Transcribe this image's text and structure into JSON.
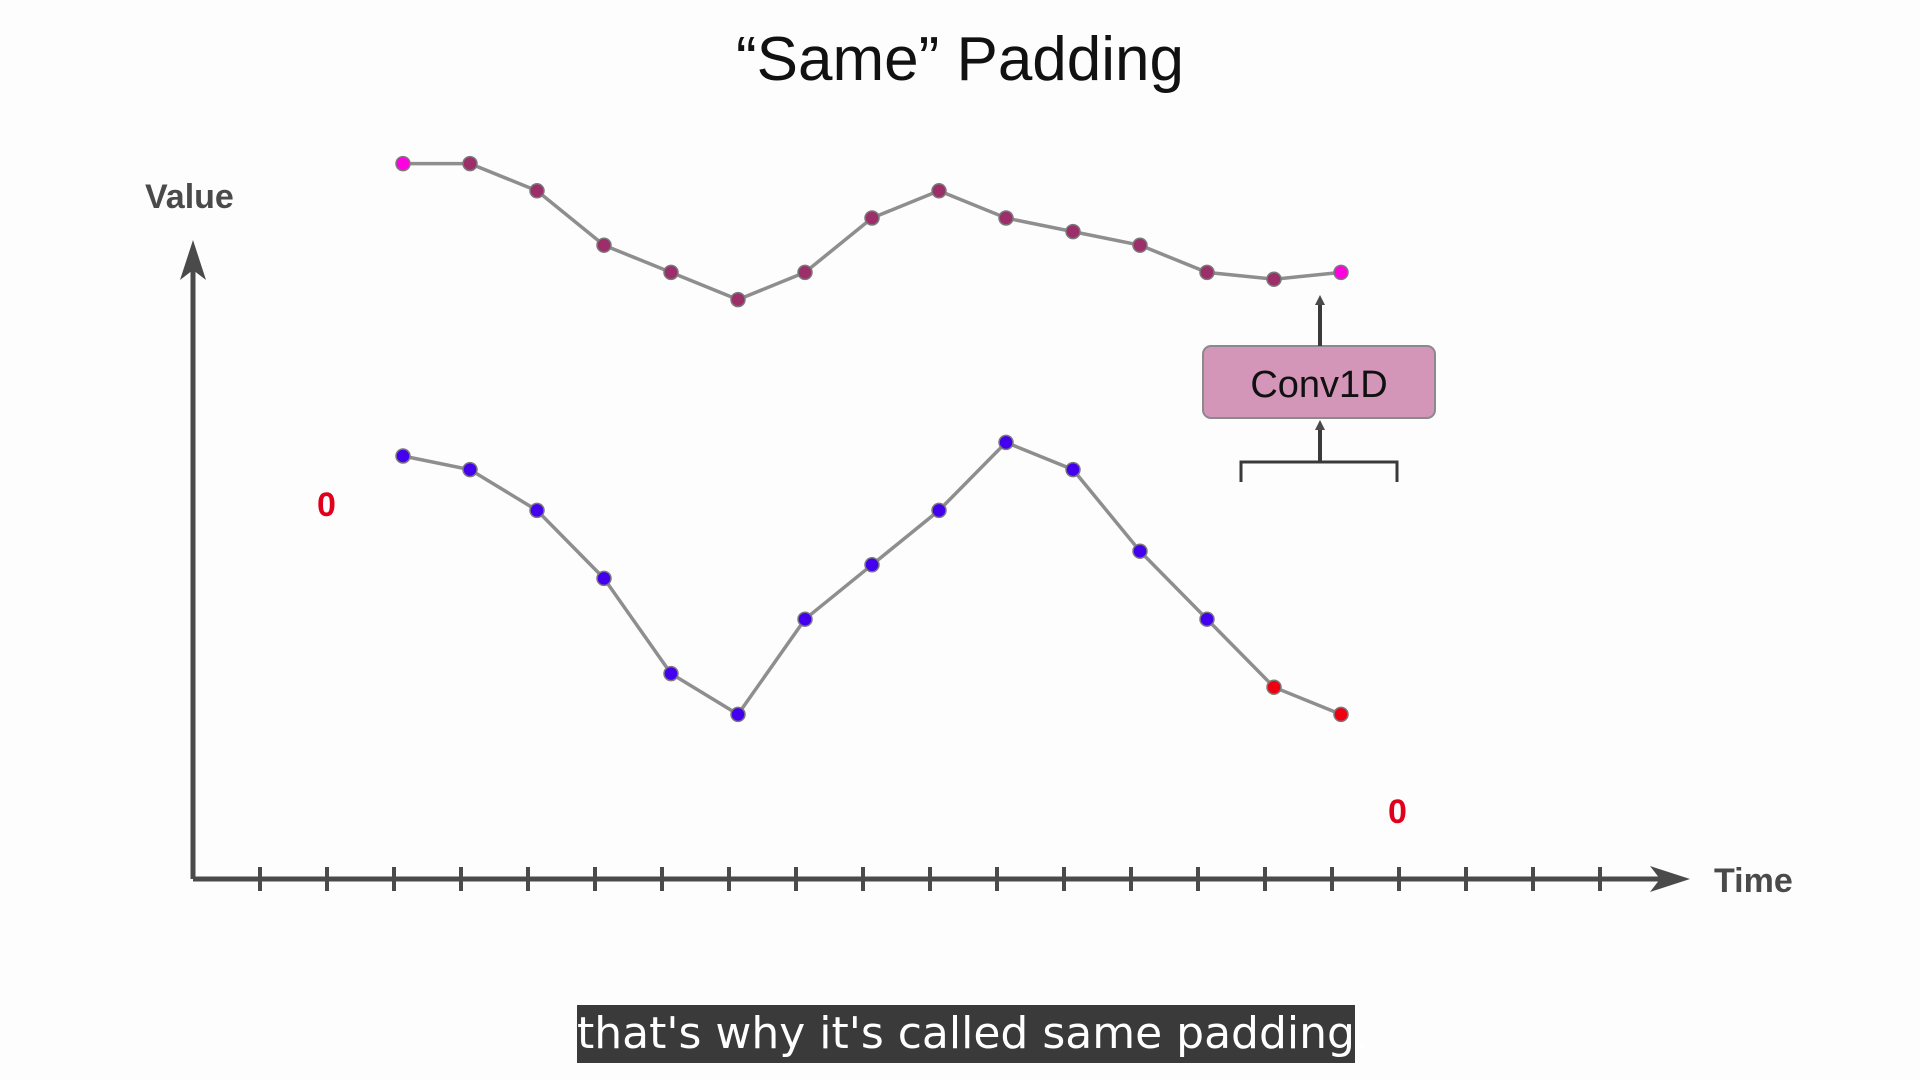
{
  "title": "“Same” Padding",
  "axes": {
    "y_label": "Value",
    "x_label": "Time"
  },
  "padding_labels": {
    "left": "0",
    "right": "0"
  },
  "conv_box": {
    "label": "Conv1D",
    "fill": "#d395b8"
  },
  "subtitle": "that's why it's called same padding.",
  "colors": {
    "axis": "#4a4a4a",
    "line": "#8e8e8e",
    "input_point": "#4400ee",
    "highlight_input_point": "#ee0011",
    "output_point": "#9c2f6a",
    "highlight_output_point": "#ff00e0",
    "zero": "#e0001b"
  },
  "chart_data": {
    "type": "line",
    "x_ticks_count": 21,
    "series": [
      {
        "role": "input",
        "values": [
          0.55,
          0.53,
          0.47,
          0.37,
          0.23,
          0.17,
          0.31,
          0.39,
          0.47,
          0.57,
          0.53,
          0.41,
          0.31,
          0.21,
          0.17
        ],
        "highlight": [
          13,
          14
        ]
      },
      {
        "role": "output",
        "values": [
          0.98,
          0.98,
          0.94,
          0.86,
          0.82,
          0.78,
          0.82,
          0.9,
          0.94,
          0.9,
          0.88,
          0.86,
          0.82,
          0.81,
          0.82
        ],
        "highlight": [
          0,
          14
        ]
      }
    ]
  }
}
